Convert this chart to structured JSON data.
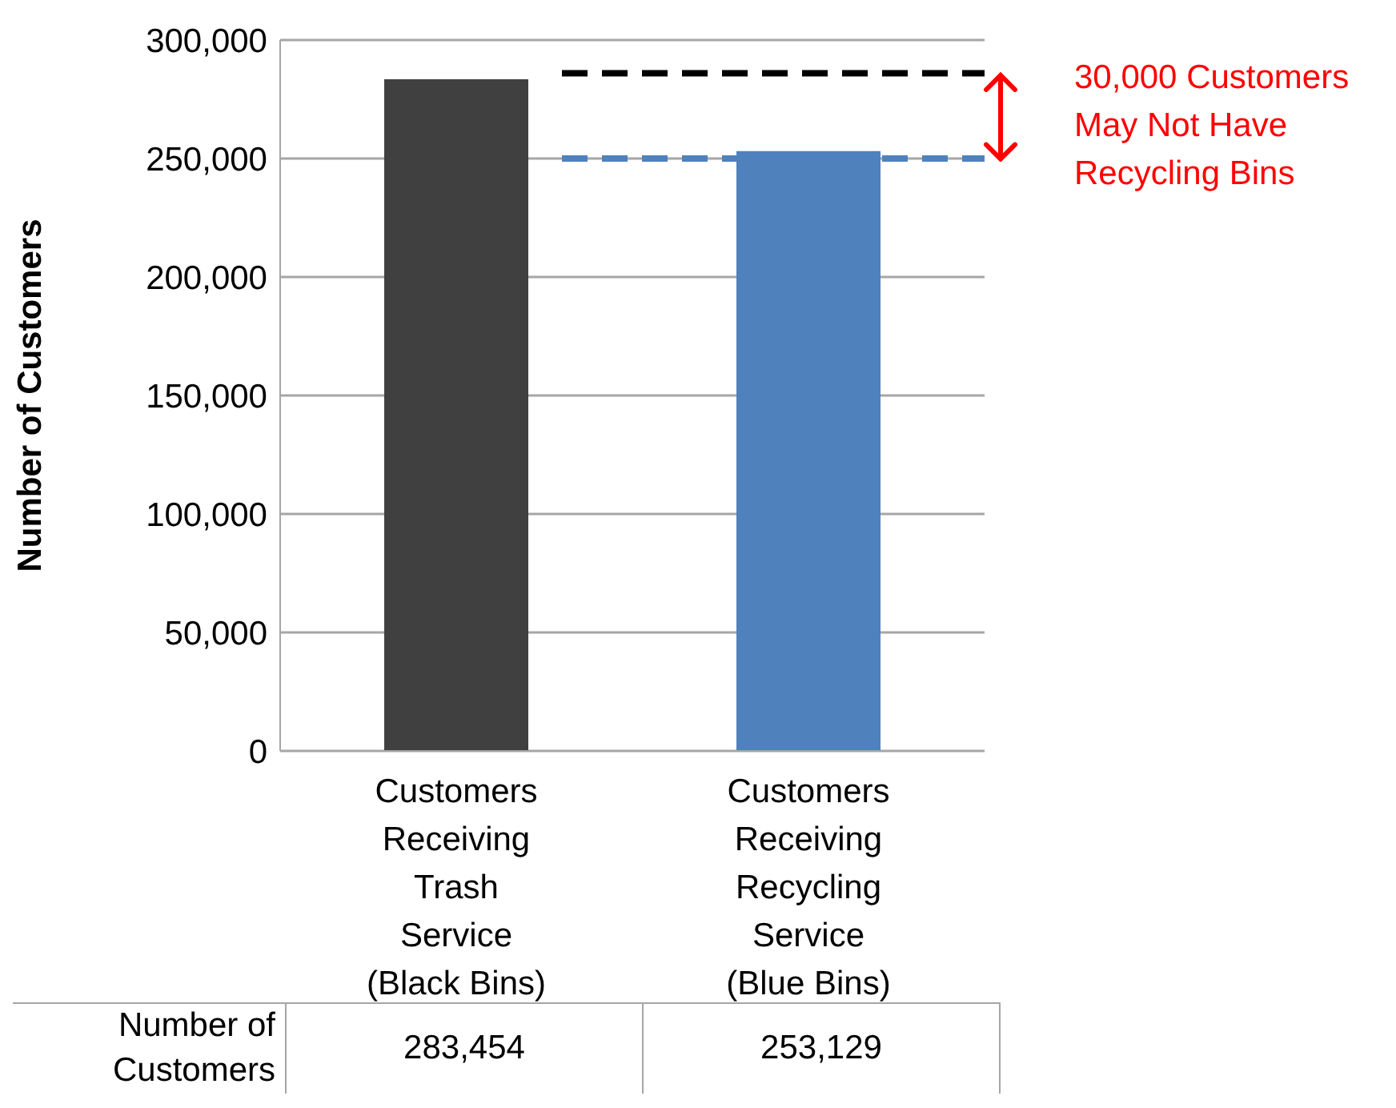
{
  "chart_data": {
    "type": "bar",
    "ylabel": "Number of Customers",
    "categories": [
      "Customers Receiving Trash Service (Black Bins)",
      "Customers Receiving Recycling Service (Blue Bins)"
    ],
    "values": [
      283454,
      253129
    ],
    "colors": [
      "#404040",
      "#4f81bd"
    ],
    "ylim": [
      0,
      300000
    ],
    "yticks": [
      {
        "value": 0,
        "label": "0"
      },
      {
        "value": 50000,
        "label": "50,000"
      },
      {
        "value": 100000,
        "label": "100,000"
      },
      {
        "value": 150000,
        "label": "150,000"
      },
      {
        "value": 200000,
        "label": "200,000"
      },
      {
        "value": 250000,
        "label": "250,000"
      },
      {
        "value": 300000,
        "label": "300,000"
      }
    ],
    "grid": "y",
    "value_labels": [
      "283,454",
      "253,129"
    ],
    "ref_lines": [
      {
        "axis": "y",
        "value": 286000,
        "color": "#000000",
        "line_style": "dashed"
      },
      {
        "axis": "y",
        "value": 250000,
        "color": "#4f81bd",
        "line_style": "dashed"
      }
    ],
    "annotations": [
      "30,000 Customers May Not Have Recycling Bins"
    ]
  }
}
